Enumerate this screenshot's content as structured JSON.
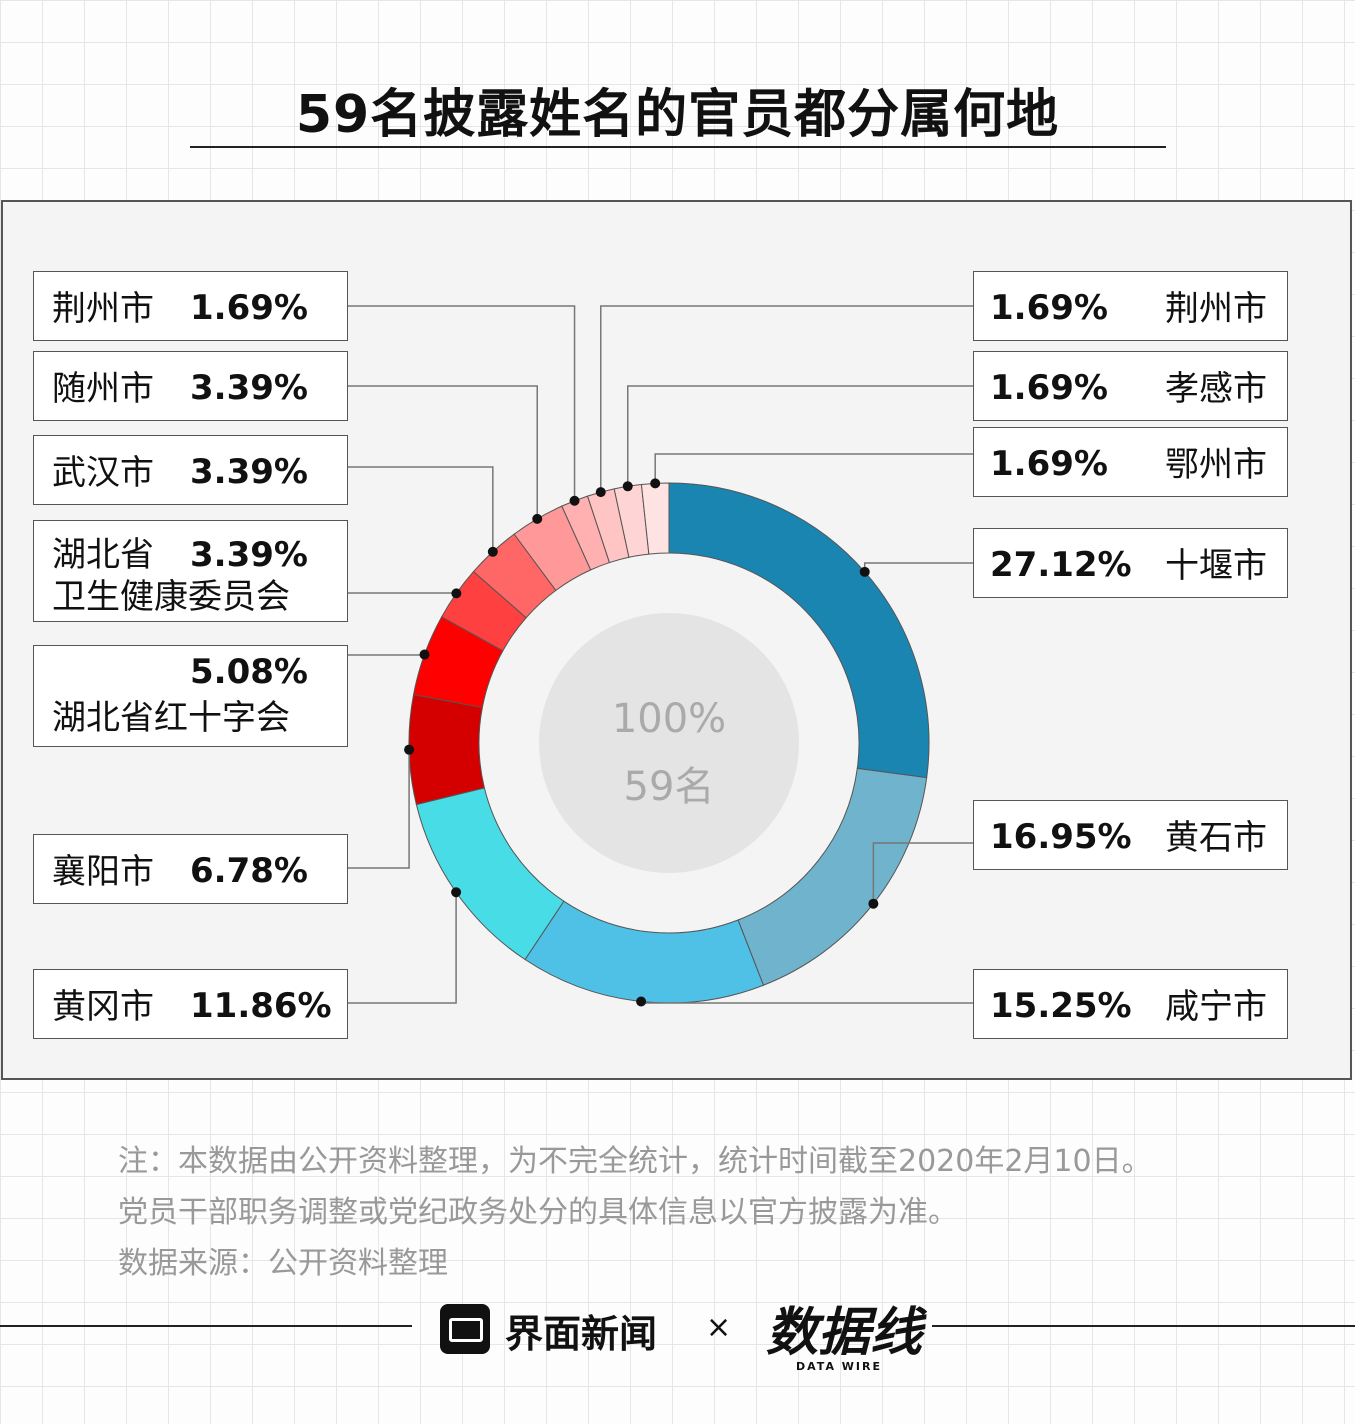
{
  "title": "59名披露姓名的官员都分属何地",
  "center": {
    "line1": "100%",
    "line2": "59名"
  },
  "chart_data": {
    "type": "pie",
    "title": "59名披露姓名的官员都分属何地",
    "total_label": "100%",
    "total_count": "59名",
    "slices": [
      {
        "label": "十堰市",
        "value": 27.12,
        "value_label": "27.12%",
        "color": "#1b85b2"
      },
      {
        "label": "黄石市",
        "value": 16.95,
        "value_label": "16.95%",
        "color": "#6fb3cc"
      },
      {
        "label": "咸宁市",
        "value": 15.25,
        "value_label": "15.25%",
        "color": "#4fc0e6"
      },
      {
        "label": "黄冈市",
        "value": 11.86,
        "value_label": "11.86%",
        "color": "#48dde6"
      },
      {
        "label": "襄阳市",
        "value": 6.78,
        "value_label": "6.78%",
        "color": "#d40000"
      },
      {
        "label": "湖北省红十字会",
        "value": 5.08,
        "value_label": "5.08%",
        "color": "#ff0000"
      },
      {
        "label": "湖北省卫生健康委员会",
        "value": 3.39,
        "value_label": "3.39%",
        "color": "#ff4040"
      },
      {
        "label": "武汉市",
        "value": 3.39,
        "value_label": "3.39%",
        "color": "#ff6666"
      },
      {
        "label": "随州市",
        "value": 3.39,
        "value_label": "3.39%",
        "color": "#ff9999"
      },
      {
        "label": "荆州市",
        "value": 1.69,
        "value_label": "1.69%",
        "color": "#ffb0b0"
      },
      {
        "label": "荆州市",
        "value": 1.69,
        "value_label": "1.69%",
        "color": "#ffc4c4"
      },
      {
        "label": "孝感市",
        "value": 1.69,
        "value_label": "1.69%",
        "color": "#ffd4d4"
      },
      {
        "label": "鄂州市",
        "value": 1.69,
        "value_label": "1.69%",
        "color": "#ffe2e2"
      }
    ]
  },
  "labels": {
    "left": [
      {
        "name": "荆州市",
        "pct": "1.69%"
      },
      {
        "name": "随州市",
        "pct": "3.39%"
      },
      {
        "name": "武汉市",
        "pct": "3.39%"
      },
      {
        "name_line1": "湖北省",
        "name_line2": "卫生健康委员会",
        "pct": "3.39%"
      },
      {
        "name": "湖北省红十字会",
        "pct": "5.08%"
      },
      {
        "name": "襄阳市",
        "pct": "6.78%"
      },
      {
        "name": "黄冈市",
        "pct": "11.86%"
      }
    ],
    "right": [
      {
        "name": "荆州市",
        "pct": "1.69%"
      },
      {
        "name": "孝感市",
        "pct": "1.69%"
      },
      {
        "name": "鄂州市",
        "pct": "1.69%"
      },
      {
        "name": "十堰市",
        "pct": "27.12%"
      },
      {
        "name": "黄石市",
        "pct": "16.95%"
      },
      {
        "name": "咸宁市",
        "pct": "15.25%"
      }
    ]
  },
  "notes": {
    "line1": "注：本数据由公开资料整理，为不完全统计，统计时间截至2020年2月10日。",
    "line2": "党员干部职务调整或党纪政务处分的具体信息以官方披露为准。",
    "line3": "数据来源：公开资料整理"
  },
  "footer": {
    "brand1": "界面新闻",
    "times": "×",
    "brand2": "数据线",
    "brand2_sub": "DATA WIRE"
  }
}
